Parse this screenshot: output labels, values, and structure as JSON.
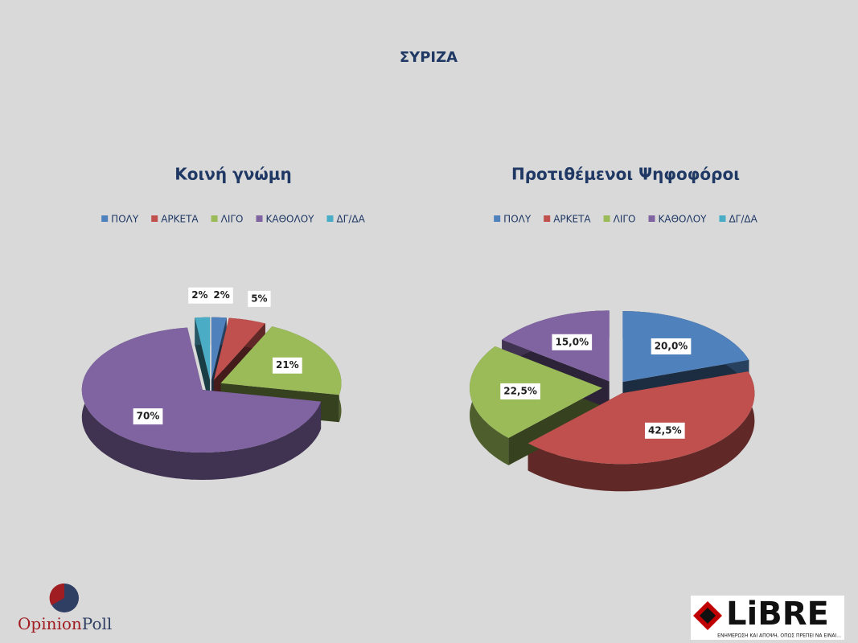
{
  "title": "ΣΥΡΙΖΑ",
  "chart_data": [
    {
      "type": "pie",
      "title": "Κοινή γνώμη",
      "categories": [
        "ΠΟΛΥ",
        "ΑΡΚΕΤΑ",
        "ΛΙΓΟ",
        "ΚΑΘΟΛΟΥ",
        "ΔΓ/ΔΑ"
      ],
      "values": [
        2,
        5,
        21,
        70,
        2
      ],
      "value_labels": [
        "2%",
        "5%",
        "21%",
        "70%",
        "2%"
      ],
      "colors": [
        "#4f81bd",
        "#c0504d",
        "#9bbb59",
        "#8064a2",
        "#4bacc6"
      ],
      "legend": "top"
    },
    {
      "type": "pie",
      "title": "Προτιθέμενοι Ψηφοφόροι",
      "categories": [
        "ΠΟΛΥ",
        "ΑΡΚΕΤΑ",
        "ΛΙΓΟ",
        "ΚΑΘΟΛΟΥ",
        "ΔΓ/ΔΑ"
      ],
      "values": [
        20.0,
        42.5,
        22.5,
        15.0,
        null
      ],
      "value_labels": [
        "20,0%",
        "42,5%",
        "22,5%",
        "15,0%",
        null
      ],
      "colors": [
        "#4f81bd",
        "#c0504d",
        "#9bbb59",
        "#8064a2",
        "#4bacc6"
      ],
      "legend": "top"
    }
  ],
  "logos": {
    "opinion": "Opinion",
    "poll": "Poll",
    "libre": "LiBRE",
    "tagline": "ΕΝΗΜΕΡΩΣΗ ΚΑΙ ΑΠΟΨΗ, ΟΠΩΣ ΠΡΕΠΕΙ ΝΑ ΕΙΝΑΙ..."
  }
}
